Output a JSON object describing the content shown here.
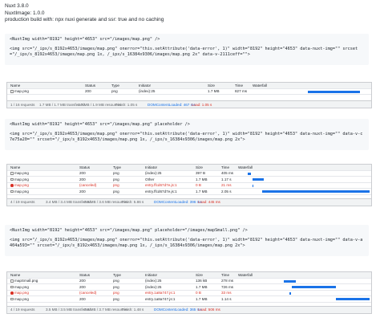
{
  "header": {
    "lines": [
      "Nuxt 3.8.0",
      "NuxtImage: 1.0.0",
      "production build with:  npx nuxi generate  and ssr: true and no caching"
    ]
  },
  "sections": [
    {
      "code": [
        "<NuxtImg width=\"8192\" height=\"4653\" src=\"/images/map.png\" />",
        "<img src=\"/_ipx/s_8192x4653/images/map.png\" onerror=\"this.setAttribute('data-error', 1)\" width=\"8192\" height=\"4653\" data-nuxt-img=\"\" srcset=\"/_ipx/s_8192x4653/images/map.png 1x, /_ipx/s_16384x9306/images/map.png 2x\" data-v-2111ceff=\"\">"
      ],
      "network": {
        "columns": [
          "Name",
          "Status",
          "Type",
          "Initiator",
          "Size",
          "Time",
          "Waterfall"
        ],
        "rows": [
          [
            "map.png",
            "200",
            "png",
            "(index):25",
            "1.7 MB",
            "827 ms"
          ]
        ],
        "footer": [
          "1 / 16 requests",
          "1.7 MB / 1.7 MB transferred",
          "1.7 MB / 1.9 MB resources",
          "Finish: 1.05 s",
          "DOMContentLoaded: 467 ms",
          "Load: 1.05 s"
        ]
      }
    },
    {
      "code": [
        "<NuxtImg width=\"8192\" height=\"4653\" src=\"/images/map.png\" placeholder />",
        "<img src=\"/_ipx/s_8192x4653/images/map.png\" onerror=\"this.setAttribute('data-error', 1)\" width=\"8192\" height=\"4653\" data-nuxt-img=\"\" data-v-c7e75a20=\"\" srcset=\"/_ipx/s_8192x4653/images/map.png 1x, /_ipx/s_16384x9306/images/map.png 2x\">"
      ],
      "network": {
        "columns": [
          "Name",
          "Status",
          "Type",
          "Initiator",
          "Size",
          "Time",
          "Waterfall"
        ],
        "rows": [
          [
            "map.png",
            "200",
            "png",
            "(index):25",
            "397 B",
            "405 ms"
          ],
          [
            "map.png",
            "200",
            "png",
            "Other",
            "1.7 MB",
            "1.17 s"
          ],
          [
            "map.png",
            "(canceled)",
            "png",
            "entry.ffcd67d7e.js:1",
            "0 B",
            "21 ms"
          ],
          [
            "map.png",
            "200",
            "png",
            "entry.ffcd67d7e.js:1",
            "1.7 MB",
            "2.05 s"
          ]
        ],
        "footer": [
          "4 / 19 requests",
          "3.4 MB / 3.4 MB transferred",
          "3.5 MB / 3.6 MB resources",
          "Finish: 5.86 s",
          "DOMContentLoaded: 396 ms",
          "Load: 445 ms"
        ]
      }
    },
    {
      "code": [
        "<NuxtImg width=\"8192\" height=\"4653\" src=\"/images/map.png\" placeholder=\"/images/mapSmall.png\" />",
        "<img src=\"/_ipx/s_8192x4653/images/map.png\" onerror=\"this.setAttribute('data-error', 1)\" width=\"8192\" height=\"4653\" data-nuxt-img=\"\" data-v-a404a593=\"\" srcset=\"/_ipx/s_8192x4653/images/map.png 1x, /_ipx/s_16384x9306/images/map.png 2x\">"
      ],
      "network": {
        "columns": [
          "Name",
          "Status",
          "Type",
          "Initiator",
          "Size",
          "Time",
          "Waterfall"
        ],
        "rows": [
          [
            "mapSmall.png",
            "200",
            "png",
            "(index):25",
            "136 kB",
            "278 ms"
          ],
          [
            "map.png",
            "200",
            "png",
            "(index):25",
            "1.7 MB",
            "726 ms"
          ],
          [
            "map.png",
            "(canceled)",
            "png",
            "entry.1a8a747.js:1",
            "0 B",
            "33 ms"
          ],
          [
            "map.png",
            "200",
            "png",
            "entry.1a8a747.js:1",
            "1.7 MB",
            "1.14 s"
          ]
        ],
        "footer": [
          "4 / 19 requests",
          "3.5 MB / 3.5 MB transferred",
          "3.6 MB / 3.7 MB resources",
          "Finish: 1.48 s",
          "DOMContentLoaded: 365 ms",
          "Load: 506 ms"
        ]
      }
    }
  ]
}
